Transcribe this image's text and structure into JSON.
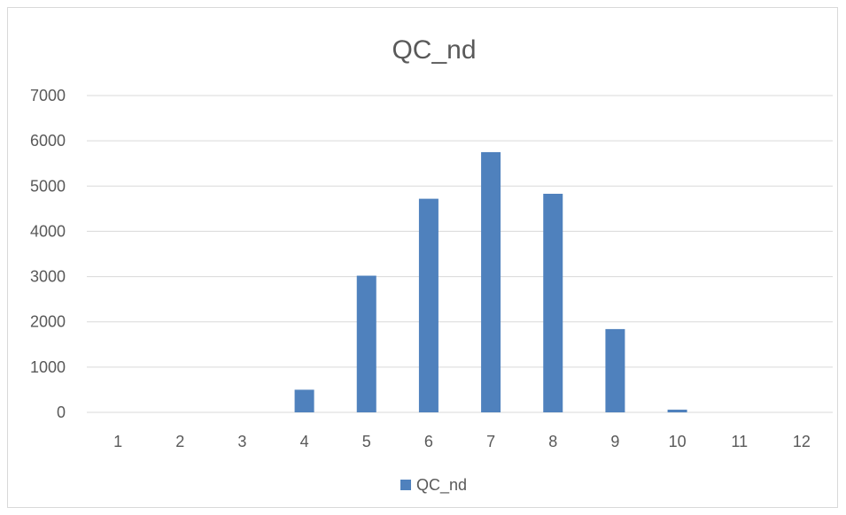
{
  "chart_data": {
    "type": "bar",
    "title": "QC_nd",
    "categories": [
      "1",
      "2",
      "3",
      "4",
      "5",
      "6",
      "7",
      "8",
      "9",
      "10",
      "11",
      "12"
    ],
    "series": [
      {
        "name": "QC_nd",
        "values": [
          0,
          0,
          0,
          500,
          3020,
          4720,
          5750,
          4830,
          1840,
          60,
          0,
          0
        ]
      }
    ],
    "yticks": [
      "0",
      "1000",
      "2000",
      "3000",
      "4000",
      "5000",
      "6000",
      "7000"
    ],
    "ylim": [
      0,
      7000
    ],
    "xlabel": "",
    "ylabel": "",
    "grid": true,
    "legend_position": "bottom",
    "colors": {
      "bar": "#4f81bd",
      "grid": "#d9d9d9",
      "text": "#595959"
    }
  }
}
